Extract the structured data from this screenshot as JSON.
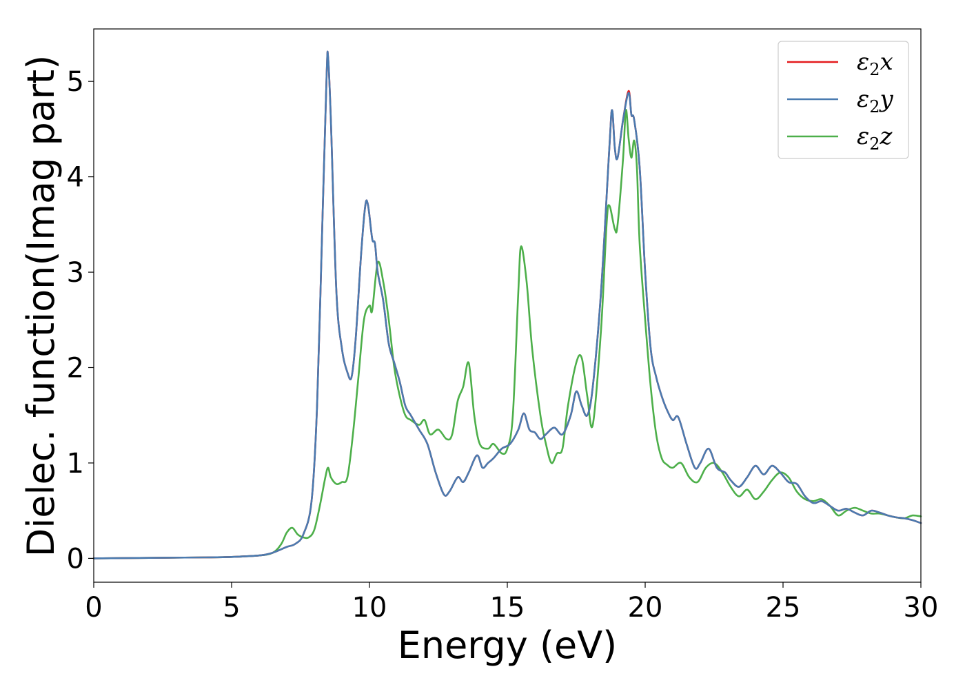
{
  "chart_data": {
    "type": "line",
    "title": "",
    "xlabel": "Energy (eV)",
    "ylabel": "Dielec. function(Imag part)",
    "xlim": [
      0,
      30
    ],
    "ylim": [
      -0.25,
      5.55
    ],
    "xticks": [
      "0",
      "5",
      "10",
      "15",
      "20",
      "25",
      "30"
    ],
    "yticks": [
      "0",
      "1",
      "2",
      "3",
      "4",
      "5"
    ],
    "grid": false,
    "legend_position": "top-right",
    "series": [
      {
        "name": "ε₂x",
        "legend": {
          "base": "ε",
          "sub": "2",
          "var": "x"
        },
        "color": "#e41a1c",
        "x": [
          0,
          2,
          4,
          5,
          6,
          6.5,
          7,
          7.3,
          7.6,
          7.9,
          8.1,
          8.3,
          8.45,
          8.5,
          8.6,
          8.8,
          9.0,
          9.2,
          9.35,
          9.5,
          9.7,
          9.85,
          9.95,
          10.1,
          10.2,
          10.3,
          10.5,
          10.7,
          10.9,
          11.1,
          11.3,
          11.5,
          11.8,
          12.1,
          12.4,
          12.7,
          12.9,
          13.2,
          13.4,
          13.6,
          13.9,
          14.1,
          14.3,
          14.5,
          14.8,
          15.1,
          15.4,
          15.6,
          15.8,
          16.0,
          16.2,
          16.4,
          16.7,
          17.0,
          17.3,
          17.5,
          17.7,
          17.9,
          18.1,
          18.4,
          18.7,
          18.8,
          18.9,
          19.0,
          19.2,
          19.4,
          19.5,
          19.6,
          19.8,
          20.0,
          20.2,
          20.4,
          20.6,
          20.8,
          21.0,
          21.2,
          21.5,
          21.8,
          22.0,
          22.3,
          22.6,
          22.9,
          23.1,
          23.4,
          23.7,
          24.0,
          24.3,
          24.6,
          24.9,
          25.2,
          25.5,
          25.8,
          26.1,
          26.4,
          26.7,
          27.0,
          27.3,
          27.6,
          27.9,
          28.2,
          28.5,
          28.8,
          29.1,
          29.4,
          29.7,
          30
        ],
        "y": [
          0.0,
          0.005,
          0.01,
          0.015,
          0.03,
          0.06,
          0.12,
          0.15,
          0.25,
          0.6,
          1.6,
          3.6,
          5.1,
          5.25,
          4.6,
          2.8,
          2.2,
          1.95,
          1.9,
          2.3,
          3.2,
          3.7,
          3.7,
          3.35,
          3.3,
          3.0,
          2.7,
          2.25,
          2.05,
          1.85,
          1.6,
          1.5,
          1.35,
          1.2,
          0.9,
          0.67,
          0.7,
          0.85,
          0.8,
          0.9,
          1.08,
          0.95,
          1.0,
          1.05,
          1.15,
          1.2,
          1.35,
          1.52,
          1.35,
          1.32,
          1.25,
          1.3,
          1.37,
          1.3,
          1.5,
          1.75,
          1.6,
          1.5,
          1.8,
          2.8,
          4.3,
          4.7,
          4.3,
          4.2,
          4.6,
          4.9,
          4.65,
          4.6,
          4.1,
          3.0,
          2.2,
          1.9,
          1.7,
          1.55,
          1.45,
          1.48,
          1.2,
          0.95,
          1.0,
          1.15,
          0.95,
          0.9,
          0.82,
          0.75,
          0.85,
          0.97,
          0.88,
          0.97,
          0.9,
          0.8,
          0.78,
          0.65,
          0.58,
          0.6,
          0.55,
          0.5,
          0.52,
          0.48,
          0.45,
          0.5,
          0.48,
          0.45,
          0.43,
          0.42,
          0.4,
          0.37
        ]
      },
      {
        "name": "ε₂y",
        "legend": {
          "base": "ε",
          "sub": "2",
          "var": "y"
        },
        "color": "#4a7bb0",
        "x": [
          0,
          2,
          4,
          5,
          6,
          6.5,
          7,
          7.3,
          7.6,
          7.9,
          8.1,
          8.3,
          8.45,
          8.5,
          8.6,
          8.8,
          9.0,
          9.2,
          9.35,
          9.5,
          9.7,
          9.85,
          9.95,
          10.1,
          10.2,
          10.3,
          10.5,
          10.7,
          10.9,
          11.1,
          11.3,
          11.5,
          11.8,
          12.1,
          12.4,
          12.7,
          12.9,
          13.2,
          13.4,
          13.6,
          13.9,
          14.1,
          14.3,
          14.5,
          14.8,
          15.1,
          15.4,
          15.6,
          15.8,
          16.0,
          16.2,
          16.4,
          16.7,
          17.0,
          17.3,
          17.5,
          17.7,
          17.9,
          18.1,
          18.4,
          18.7,
          18.8,
          18.9,
          19.0,
          19.2,
          19.4,
          19.5,
          19.6,
          19.8,
          20.0,
          20.2,
          20.4,
          20.6,
          20.8,
          21.0,
          21.2,
          21.5,
          21.8,
          22.0,
          22.3,
          22.6,
          22.9,
          23.1,
          23.4,
          23.7,
          24.0,
          24.3,
          24.6,
          24.9,
          25.2,
          25.5,
          25.8,
          26.1,
          26.4,
          26.7,
          27.0,
          27.3,
          27.6,
          27.9,
          28.2,
          28.5,
          28.8,
          29.1,
          29.4,
          29.7,
          30
        ],
        "y": [
          0.0,
          0.005,
          0.01,
          0.015,
          0.03,
          0.06,
          0.12,
          0.15,
          0.25,
          0.6,
          1.6,
          3.6,
          5.1,
          5.25,
          4.6,
          2.8,
          2.2,
          1.95,
          1.9,
          2.3,
          3.2,
          3.7,
          3.7,
          3.35,
          3.3,
          3.0,
          2.7,
          2.25,
          2.05,
          1.85,
          1.6,
          1.5,
          1.35,
          1.2,
          0.9,
          0.67,
          0.7,
          0.85,
          0.8,
          0.9,
          1.08,
          0.95,
          1.0,
          1.05,
          1.15,
          1.2,
          1.35,
          1.52,
          1.35,
          1.32,
          1.25,
          1.3,
          1.37,
          1.3,
          1.5,
          1.75,
          1.6,
          1.5,
          1.8,
          2.8,
          4.3,
          4.7,
          4.3,
          4.2,
          4.6,
          4.88,
          4.65,
          4.6,
          4.1,
          3.0,
          2.2,
          1.9,
          1.7,
          1.55,
          1.45,
          1.48,
          1.2,
          0.95,
          1.0,
          1.15,
          0.95,
          0.9,
          0.82,
          0.75,
          0.85,
          0.97,
          0.88,
          0.97,
          0.9,
          0.8,
          0.78,
          0.65,
          0.58,
          0.6,
          0.55,
          0.5,
          0.52,
          0.48,
          0.45,
          0.5,
          0.48,
          0.45,
          0.43,
          0.42,
          0.4,
          0.37
        ]
      },
      {
        "name": "ε₂z",
        "legend": {
          "base": "ε",
          "sub": "2",
          "var": "z"
        },
        "color": "#4daf4a",
        "x": [
          0,
          2,
          4,
          5,
          6,
          6.5,
          6.8,
          7.0,
          7.2,
          7.4,
          7.6,
          7.8,
          8.0,
          8.2,
          8.4,
          8.5,
          8.6,
          8.8,
          9.0,
          9.2,
          9.4,
          9.6,
          9.8,
          10.0,
          10.1,
          10.3,
          10.5,
          10.7,
          10.9,
          11.1,
          11.3,
          11.5,
          11.8,
          12.0,
          12.2,
          12.5,
          12.8,
          13.0,
          13.2,
          13.4,
          13.6,
          13.8,
          14.0,
          14.3,
          14.5,
          14.8,
          15.0,
          15.2,
          15.4,
          15.5,
          15.7,
          15.9,
          16.2,
          16.4,
          16.6,
          16.8,
          17.0,
          17.2,
          17.5,
          17.7,
          17.9,
          18.1,
          18.4,
          18.6,
          18.7,
          18.9,
          19.0,
          19.2,
          19.3,
          19.4,
          19.5,
          19.6,
          19.7,
          19.8,
          20.0,
          20.2,
          20.4,
          20.6,
          20.8,
          21.0,
          21.3,
          21.6,
          21.9,
          22.2,
          22.5,
          22.8,
          23.1,
          23.4,
          23.7,
          24.0,
          24.3,
          24.6,
          24.9,
          25.2,
          25.5,
          25.8,
          26.1,
          26.4,
          26.7,
          27.0,
          27.3,
          27.6,
          27.9,
          28.2,
          28.5,
          28.8,
          29.1,
          29.4,
          29.7,
          30
        ],
        "y": [
          0.0,
          0.005,
          0.01,
          0.015,
          0.03,
          0.06,
          0.15,
          0.27,
          0.32,
          0.25,
          0.22,
          0.22,
          0.3,
          0.55,
          0.85,
          0.95,
          0.85,
          0.78,
          0.8,
          0.85,
          1.3,
          1.9,
          2.5,
          2.65,
          2.6,
          3.1,
          2.9,
          2.5,
          2.0,
          1.7,
          1.5,
          1.45,
          1.4,
          1.45,
          1.3,
          1.35,
          1.25,
          1.3,
          1.65,
          1.8,
          2.05,
          1.5,
          1.2,
          1.15,
          1.2,
          1.1,
          1.15,
          1.5,
          2.8,
          3.27,
          2.9,
          2.2,
          1.5,
          1.2,
          1.0,
          1.1,
          1.15,
          1.6,
          2.05,
          2.1,
          1.7,
          1.4,
          2.4,
          3.5,
          3.7,
          3.45,
          3.5,
          4.2,
          4.7,
          4.4,
          4.2,
          4.38,
          4.1,
          3.3,
          2.5,
          1.8,
          1.3,
          1.05,
          0.98,
          0.95,
          1.0,
          0.85,
          0.8,
          0.95,
          1.0,
          0.9,
          0.75,
          0.65,
          0.72,
          0.62,
          0.7,
          0.82,
          0.9,
          0.85,
          0.7,
          0.62,
          0.6,
          0.62,
          0.55,
          0.45,
          0.5,
          0.53,
          0.5,
          0.47,
          0.47,
          0.45,
          0.43,
          0.42,
          0.45,
          0.44
        ]
      }
    ]
  }
}
